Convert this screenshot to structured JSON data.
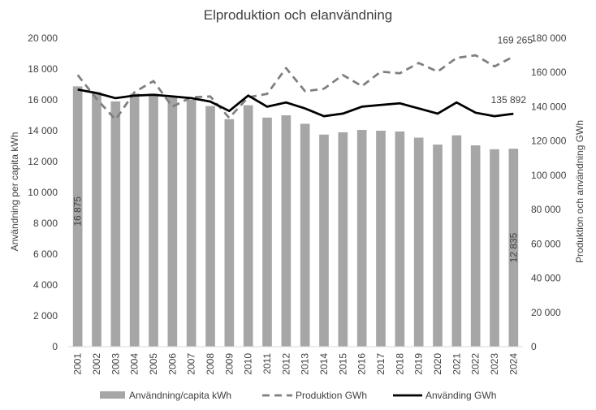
{
  "chart_data": {
    "type": "bar+line",
    "title": "Elproduktion och elanvändning",
    "categories": [
      "2001",
      "2002",
      "2003",
      "2004",
      "2005",
      "2006",
      "2007",
      "2008",
      "2009",
      "2010",
      "2011",
      "2012",
      "2013",
      "2014",
      "2015",
      "2016",
      "2017",
      "2018",
      "2019",
      "2020",
      "2021",
      "2022",
      "2023",
      "2024"
    ],
    "left_axis": {
      "title": "Användning per capita kWh",
      "min": 0,
      "max": 20000,
      "step": 2000,
      "tick_labels": [
        "0",
        "2 000",
        "4 000",
        "6 000",
        "8 000",
        "10 000",
        "12 000",
        "14 000",
        "16 000",
        "18 000",
        "20 000"
      ]
    },
    "right_axis": {
      "title": "Produktion och användning GWh",
      "min": 0,
      "max": 180000,
      "step": 20000,
      "tick_labels": [
        "0",
        "20 000",
        "40 000",
        "60 000",
        "80 000",
        "100 000",
        "120 000",
        "140 000",
        "160 000",
        "180 000"
      ]
    },
    "series": [
      {
        "name": "Användning/capita kWh",
        "type": "bar",
        "axis": "left",
        "color": "#a6a6a6",
        "values": [
          16875,
          16500,
          15900,
          16400,
          16400,
          16150,
          16000,
          15600,
          14750,
          15650,
          14850,
          15000,
          14450,
          13750,
          13900,
          14050,
          14000,
          13950,
          13550,
          13100,
          13700,
          13050,
          12800,
          12835
        ]
      },
      {
        "name": "Produktion GWh",
        "type": "line",
        "axis": "right",
        "color": "#7f7f7f",
        "dashed": true,
        "values": [
          158500,
          144500,
          132500,
          148500,
          155000,
          140000,
          145500,
          146000,
          133500,
          145500,
          147500,
          162500,
          149000,
          150500,
          158500,
          152000,
          160500,
          159500,
          165500,
          160500,
          168500,
          170000,
          163500,
          169265
        ]
      },
      {
        "name": "Använding GWh",
        "type": "line",
        "axis": "right",
        "color": "#000000",
        "dashed": false,
        "values": [
          150000,
          148000,
          145000,
          146500,
          147000,
          146000,
          145000,
          143000,
          137500,
          146500,
          140000,
          142500,
          139000,
          134500,
          136000,
          140000,
          141000,
          142000,
          139000,
          136000,
          142500,
          136500,
          134500,
          135892
        ]
      }
    ],
    "data_labels": {
      "bar_first": "16 875",
      "bar_last": "12 835",
      "production_last": "169 265",
      "usage_last": "135 892"
    },
    "legend": [
      "Användning/capita kWh",
      "Produktion GWh",
      "Använding GWh"
    ],
    "legend_position": "bottom",
    "grid": false
  }
}
